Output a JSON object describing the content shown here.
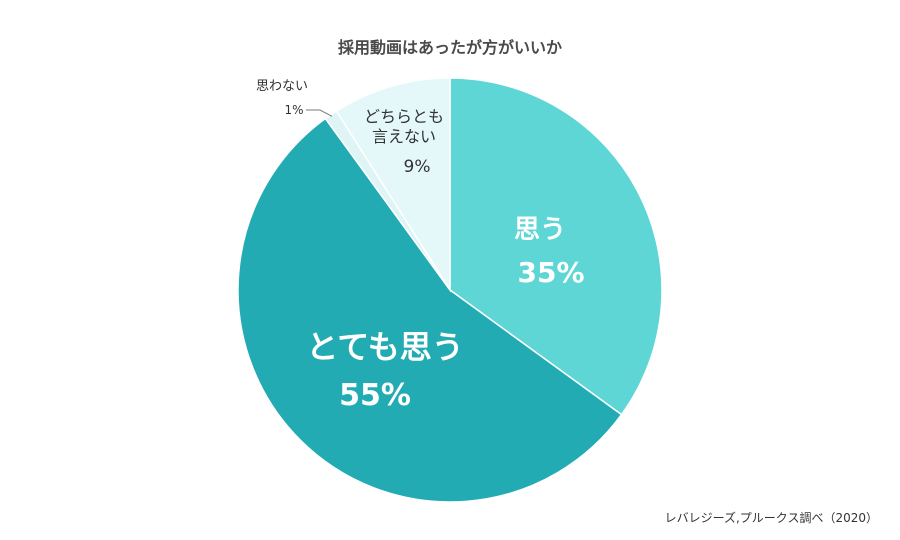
{
  "chart_data": {
    "type": "pie",
    "title": "採用動画はあったが方がいいか",
    "start_angle_deg": 0,
    "direction": "clockwise",
    "slices": [
      {
        "label": "思う",
        "value_label": "35%",
        "value": 35,
        "color": "#5ed6d6",
        "label_color": "#ffffff",
        "label_position": "inside"
      },
      {
        "label": "とても思う",
        "value_label": "55%",
        "value": 55,
        "color": "#22abb3",
        "label_color": "#ffffff",
        "label_position": "inside"
      },
      {
        "label": "思わない",
        "value_label": "1%",
        "value": 1,
        "color": "#dff5f5",
        "label_color": "#333333",
        "label_position": "outside"
      },
      {
        "label": "どちらとも言えない",
        "label_lines": [
          "どちらとも",
          "言えない"
        ],
        "value_label": "9%",
        "value": 9,
        "color": "#e4f8fa",
        "label_color": "#333333",
        "label_position": "inside"
      }
    ],
    "source": "レバレジーズ,プルークス調べ（2020）",
    "colors": {
      "edge": "#ffffff",
      "leader_line": "#7a7a7a"
    }
  }
}
